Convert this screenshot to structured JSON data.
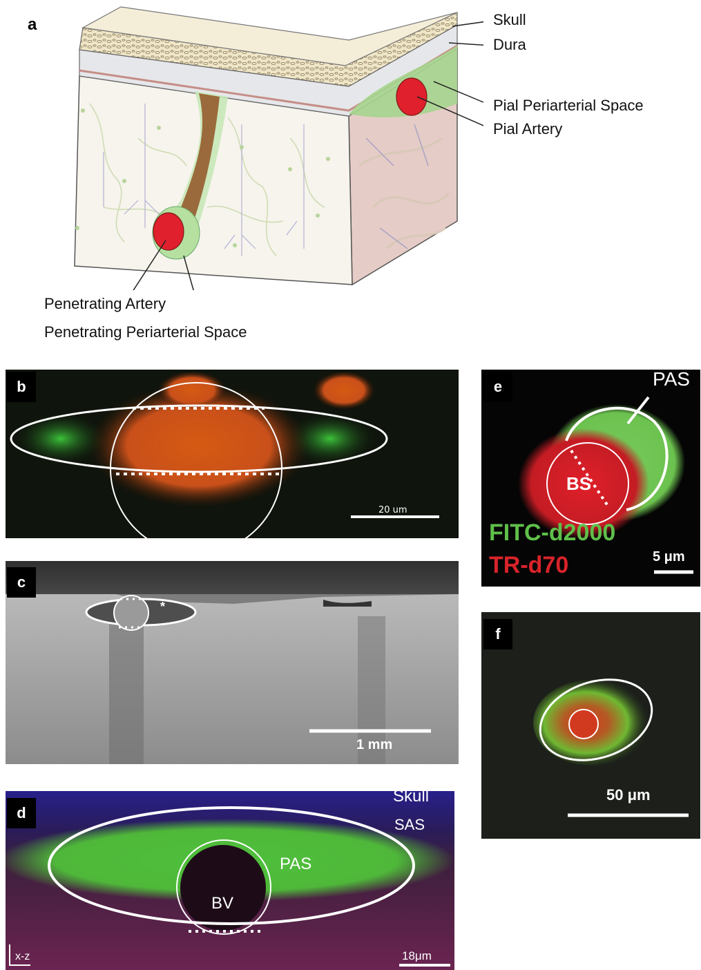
{
  "panels": {
    "a": {
      "letter": "a",
      "labels": {
        "skull": "Skull",
        "dura": "Dura",
        "pial_pas": "Pial Periarterial Space",
        "pial_artery": "Pial Artery",
        "penetrating_artery": "Penetrating Artery",
        "penetrating_pas": "Penetrating Periarterial Space"
      }
    },
    "b": {
      "letter": "b",
      "scale": "20 um"
    },
    "c": {
      "letter": "c",
      "scale": "1 mm",
      "marker": "*"
    },
    "d": {
      "letter": "d",
      "labels": {
        "skull": "Skull",
        "sas": "SAS",
        "pas": "PAS",
        "bv": "BV",
        "axis": "x-z"
      },
      "scale": "18μm"
    },
    "e": {
      "letter": "e",
      "labels": {
        "pas": "PAS",
        "bs": "BS",
        "fitc": "FITC-d2000",
        "tr": "TR-d70"
      },
      "scale": "5 μm"
    },
    "f": {
      "letter": "f",
      "scale": "50 μm"
    }
  },
  "colors": {
    "artery_red": "#e0202c",
    "space_green": "#8ccf7e",
    "fitc_green": "#5fbf4a",
    "tr_red": "#d8232a"
  }
}
